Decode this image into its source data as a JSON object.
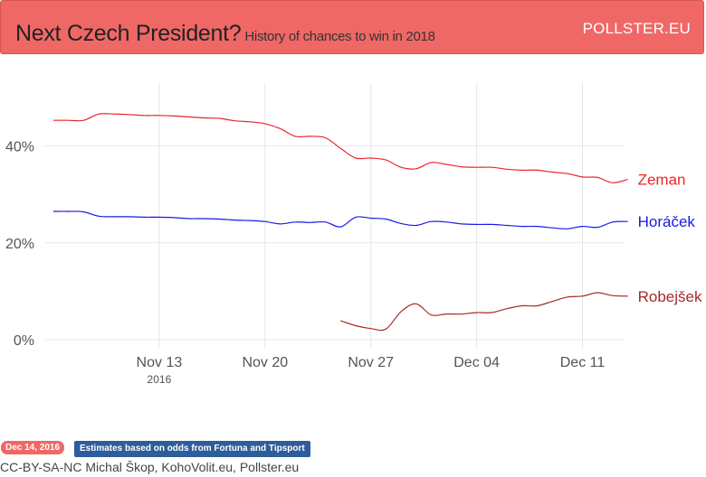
{
  "header": {
    "title": "Next Czech President?",
    "subtitle": "History of chances to win in 2018",
    "brand": "POLLSTER.EU"
  },
  "footer": {
    "date_badge": "Dec 14, 2016",
    "note_badge": "Estimates based on odds from Fortuna and Tipsport",
    "credits": "CC-BY-SA-NC Michal Škop, KohoVolit.eu, Pollster.eu"
  },
  "colors": {
    "header_bg": "#ef6866",
    "zeman": "#e8262b",
    "horacek": "#1a1ae6",
    "robejsek": "#a62a2a"
  },
  "chart_data": {
    "type": "line",
    "title": "",
    "xlabel": "",
    "ylabel": "",
    "x_range": [
      "2016-11-06",
      "2016-12-14"
    ],
    "ylim": [
      0,
      50
    ],
    "y_ticks": [
      0,
      20,
      40
    ],
    "y_tick_labels": [
      "0%",
      "20%",
      "40%"
    ],
    "x_ticks": [
      "2016-11-13",
      "2016-11-20",
      "2016-11-27",
      "2016-12-04",
      "2016-12-11"
    ],
    "x_tick_labels": [
      "Nov 13",
      "Nov 20",
      "Nov 27",
      "Dec 04",
      "Dec 11"
    ],
    "x_tick_sublabel": {
      "at": "2016-11-13",
      "text": "2016"
    },
    "grid": true,
    "series": [
      {
        "name": "Zeman",
        "color": "#e8262b",
        "points": [
          [
            "2016-11-06",
            45.3
          ],
          [
            "2016-11-07",
            45.3
          ],
          [
            "2016-11-08",
            45.3
          ],
          [
            "2016-11-09",
            46.6
          ],
          [
            "2016-11-10",
            46.6
          ],
          [
            "2016-11-11",
            46.5
          ],
          [
            "2016-11-12",
            46.3
          ],
          [
            "2016-11-13",
            46.3
          ],
          [
            "2016-11-14",
            46.2
          ],
          [
            "2016-11-15",
            46.0
          ],
          [
            "2016-11-16",
            45.8
          ],
          [
            "2016-11-17",
            45.7
          ],
          [
            "2016-11-18",
            45.2
          ],
          [
            "2016-11-19",
            45.0
          ],
          [
            "2016-11-20",
            44.6
          ],
          [
            "2016-11-21",
            43.6
          ],
          [
            "2016-11-22",
            42.0
          ],
          [
            "2016-11-23",
            42.0
          ],
          [
            "2016-11-24",
            41.7
          ],
          [
            "2016-11-25",
            39.5
          ],
          [
            "2016-11-26",
            37.5
          ],
          [
            "2016-11-27",
            37.5
          ],
          [
            "2016-11-28",
            37.1
          ],
          [
            "2016-11-29",
            35.6
          ],
          [
            "2016-11-30",
            35.3
          ],
          [
            "2016-12-01",
            36.6
          ],
          [
            "2016-12-02",
            36.2
          ],
          [
            "2016-12-03",
            35.7
          ],
          [
            "2016-12-04",
            35.6
          ],
          [
            "2016-12-05",
            35.6
          ],
          [
            "2016-12-06",
            35.2
          ],
          [
            "2016-12-07",
            35.0
          ],
          [
            "2016-12-08",
            35.0
          ],
          [
            "2016-12-09",
            34.6
          ],
          [
            "2016-12-10",
            34.3
          ],
          [
            "2016-12-11",
            33.6
          ],
          [
            "2016-12-12",
            33.5
          ],
          [
            "2016-12-13",
            32.4
          ],
          [
            "2016-12-14",
            33.1
          ]
        ]
      },
      {
        "name": "Horáček",
        "color": "#1a1ae6",
        "points": [
          [
            "2016-11-06",
            26.5
          ],
          [
            "2016-11-07",
            26.5
          ],
          [
            "2016-11-08",
            26.4
          ],
          [
            "2016-11-09",
            25.5
          ],
          [
            "2016-11-10",
            25.4
          ],
          [
            "2016-11-11",
            25.4
          ],
          [
            "2016-11-12",
            25.3
          ],
          [
            "2016-11-13",
            25.3
          ],
          [
            "2016-11-14",
            25.2
          ],
          [
            "2016-11-15",
            25.0
          ],
          [
            "2016-11-16",
            25.0
          ],
          [
            "2016-11-17",
            24.9
          ],
          [
            "2016-11-18",
            24.7
          ],
          [
            "2016-11-19",
            24.6
          ],
          [
            "2016-11-20",
            24.4
          ],
          [
            "2016-11-21",
            23.9
          ],
          [
            "2016-11-22",
            24.3
          ],
          [
            "2016-11-23",
            24.2
          ],
          [
            "2016-11-24",
            24.3
          ],
          [
            "2016-11-25",
            23.3
          ],
          [
            "2016-11-26",
            25.3
          ],
          [
            "2016-11-27",
            25.1
          ],
          [
            "2016-11-28",
            24.9
          ],
          [
            "2016-11-29",
            24.0
          ],
          [
            "2016-11-30",
            23.6
          ],
          [
            "2016-12-01",
            24.4
          ],
          [
            "2016-12-02",
            24.3
          ],
          [
            "2016-12-03",
            23.9
          ],
          [
            "2016-12-04",
            23.8
          ],
          [
            "2016-12-05",
            23.8
          ],
          [
            "2016-12-06",
            23.6
          ],
          [
            "2016-12-07",
            23.4
          ],
          [
            "2016-12-08",
            23.4
          ],
          [
            "2016-12-09",
            23.1
          ],
          [
            "2016-12-10",
            22.9
          ],
          [
            "2016-12-11",
            23.4
          ],
          [
            "2016-12-12",
            23.2
          ],
          [
            "2016-12-13",
            24.3
          ],
          [
            "2016-12-14",
            24.4
          ]
        ]
      },
      {
        "name": "Robejšek",
        "color": "#a62a2a",
        "points": [
          [
            "2016-11-25",
            3.9
          ],
          [
            "2016-11-26",
            2.9
          ],
          [
            "2016-11-27",
            2.3
          ],
          [
            "2016-11-28",
            2.2
          ],
          [
            "2016-11-29",
            5.8
          ],
          [
            "2016-11-30",
            7.4
          ],
          [
            "2016-12-01",
            5.1
          ],
          [
            "2016-12-02",
            5.3
          ],
          [
            "2016-12-03",
            5.3
          ],
          [
            "2016-12-04",
            5.6
          ],
          [
            "2016-12-05",
            5.6
          ],
          [
            "2016-12-06",
            6.4
          ],
          [
            "2016-12-07",
            7.0
          ],
          [
            "2016-12-08",
            7.0
          ],
          [
            "2016-12-09",
            7.9
          ],
          [
            "2016-12-10",
            8.8
          ],
          [
            "2016-12-11",
            9.0
          ],
          [
            "2016-12-12",
            9.7
          ],
          [
            "2016-12-13",
            9.1
          ],
          [
            "2016-12-14",
            9.0
          ]
        ]
      }
    ]
  }
}
